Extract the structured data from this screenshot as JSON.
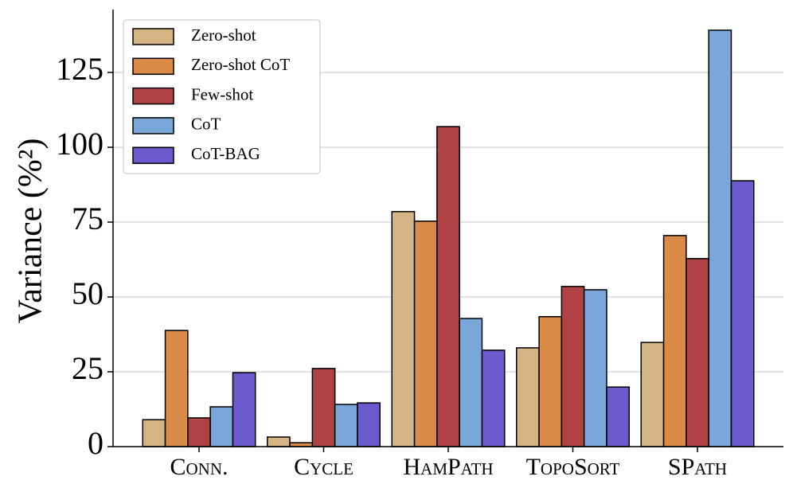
{
  "chart_data": {
    "type": "bar",
    "ylabel": "Variance (%²)",
    "categories": [
      "Conn.",
      "Cycle",
      "HamPath",
      "TopoSort",
      "SPath"
    ],
    "series": [
      {
        "name": "Zero-shot",
        "color": "#d4b483",
        "values": [
          9.0,
          3.2,
          78.5,
          33.0,
          34.8
        ]
      },
      {
        "name": "Zero-shot CoT",
        "color": "#d98b47",
        "values": [
          38.8,
          1.3,
          75.3,
          43.4,
          70.5
        ]
      },
      {
        "name": "Few-shot",
        "color": "#b04245",
        "values": [
          9.6,
          26.1,
          106.9,
          53.5,
          62.8
        ]
      },
      {
        "name": "CoT",
        "color": "#7aa7d9",
        "values": [
          13.3,
          14.1,
          42.8,
          52.4,
          139.1
        ]
      },
      {
        "name": "CoT-BAG",
        "color": "#6b5acd",
        "values": [
          24.7,
          14.6,
          32.2,
          19.9,
          88.8
        ]
      }
    ],
    "ylim": [
      0,
      146
    ],
    "yticks": [
      0,
      25,
      50,
      75,
      100,
      125
    ],
    "grid": true,
    "legend": "upper left"
  }
}
